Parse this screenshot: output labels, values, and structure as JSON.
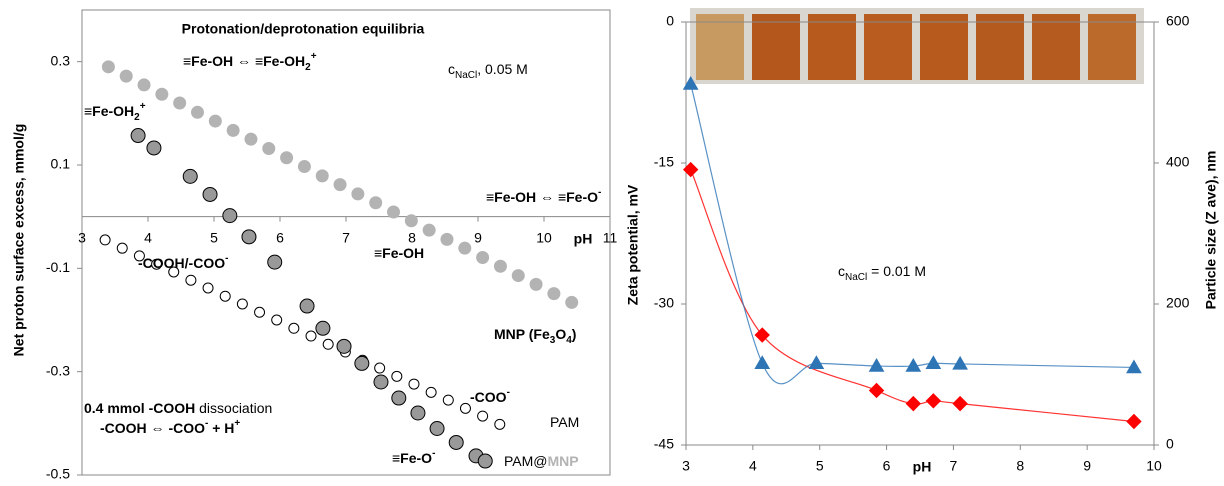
{
  "chart_data": [
    {
      "type": "scatter",
      "title": "Protonation/deprotonation equilibria",
      "x_label": "pH",
      "y_label": "Net proton surface excess, mmol/g",
      "xlim": [
        3,
        11
      ],
      "xticks": [
        3,
        4,
        5,
        6,
        7,
        8,
        9,
        10,
        11
      ],
      "ylim": [
        -0.5,
        0.4
      ],
      "yticks": [
        -0.5,
        -0.3,
        -0.1,
        0.1,
        0.3
      ],
      "series": [
        {
          "color": "#b3b3b3",
          "edgecolor": "#b3b3b3",
          "marker": "circle",
          "x": [
            3.4,
            3.67,
            3.94,
            4.21,
            4.48,
            4.75,
            5.02,
            5.29,
            5.56,
            5.83,
            6.1,
            6.37,
            6.64,
            6.91,
            7.18,
            7.45,
            7.72,
            7.99,
            8.26,
            8.53,
            8.8,
            9.07,
            9.34,
            9.61,
            9.88,
            10.15,
            10.42
          ],
          "values": [
            0.29,
            0.272,
            0.255,
            0.237,
            0.22,
            0.202,
            0.185,
            0.167,
            0.15,
            0.132,
            0.114,
            0.097,
            0.079,
            0.062,
            0.044,
            0.027,
            0.009,
            -0.008,
            -0.026,
            -0.044,
            -0.061,
            -0.079,
            -0.096,
            -0.114,
            -0.131,
            -0.149,
            -0.166
          ]
        },
        {
          "color": "#ffffff",
          "edgecolor": "#000000",
          "marker": "circle",
          "x": [
            3.35,
            3.61,
            3.87,
            4.13,
            4.39,
            4.65,
            4.91,
            5.17,
            5.43,
            5.69,
            5.95,
            6.21,
            6.47,
            6.73,
            6.99,
            7.25,
            7.51,
            7.77,
            8.03,
            8.29,
            8.55,
            8.81,
            9.07,
            9.33
          ],
          "values": [
            -0.045,
            -0.061,
            -0.076,
            -0.092,
            -0.107,
            -0.123,
            -0.138,
            -0.154,
            -0.169,
            -0.185,
            -0.2,
            -0.216,
            -0.231,
            -0.247,
            -0.262,
            -0.278,
            -0.293,
            -0.309,
            -0.324,
            -0.34,
            -0.355,
            -0.371,
            -0.386,
            -0.402
          ]
        },
        {
          "color": "#999999",
          "edgecolor": "#000000",
          "marker": "circle",
          "x": [
            3.85,
            4.09,
            4.64,
            4.94,
            5.24,
            5.53,
            5.92,
            6.41,
            6.65,
            6.97,
            7.24,
            7.53,
            7.8,
            8.09,
            8.38,
            8.67,
            8.97,
            9.11
          ],
          "values": [
            0.157,
            0.133,
            0.078,
            0.043,
            0.002,
            -0.039,
            -0.088,
            -0.173,
            -0.216,
            -0.251,
            -0.284,
            -0.32,
            -0.351,
            -0.38,
            -0.41,
            -0.437,
            -0.463,
            -0.473
          ]
        }
      ],
      "annotations": [
        {
          "color": "#000000",
          "parts": [
            {
              "text": "c"
            },
            {
              "text": "NaCl",
              "sub": true
            },
            {
              "text": ", 0.05 M"
            }
          ]
        },
        {
          "color": "#b3b3b3",
          "parts": [
            {
              "text": "≡Fe-OH ⇔ ≡Fe-OH",
              "bold": true
            },
            {
              "text": "2",
              "sub": true,
              "bold": true
            },
            {
              "text": "+",
              "sup": true,
              "bold": true
            }
          ]
        },
        {
          "color": "#000000",
          "parts": [
            {
              "text": "≡Fe-OH",
              "bold": true
            },
            {
              "text": "2",
              "sub": true,
              "bold": true
            },
            {
              "text": "+",
              "sup": true,
              "bold": true
            }
          ]
        },
        {
          "color": "#b3b3b3",
          "parts": [
            {
              "text": "≡Fe-OH ⇔ ≡Fe-O",
              "bold": true
            },
            {
              "text": "-",
              "sup": true,
              "bold": true
            }
          ]
        },
        {
          "color": "#b3b3b3",
          "parts": [
            {
              "text": "≡Fe-OH",
              "bold": true
            }
          ]
        },
        {
          "color": "#000000",
          "parts": [
            {
              "text": "-COOH/-COO",
              "bold": true
            },
            {
              "text": "-",
              "sup": true,
              "bold": true
            }
          ]
        },
        {
          "color": "#b3b3b3",
          "parts": [
            {
              "text": "MNP (Fe",
              "bold": true
            },
            {
              "text": "3",
              "sub": true,
              "bold": true
            },
            {
              "text": "O",
              "bold": true
            },
            {
              "text": "4",
              "sub": true,
              "bold": true
            },
            {
              "text": ")",
              "bold": true
            }
          ]
        },
        {
          "color": "#000000",
          "parts": [
            {
              "text": "-COO",
              "bold": true
            },
            {
              "text": "-",
              "sup": true,
              "bold": true
            }
          ]
        },
        {
          "color": "#000000",
          "parts": [
            {
              "text": "PAM"
            }
          ]
        },
        {
          "color": "#000000",
          "parts": [
            {
              "text": "0.4 mmol -COOH",
              "bold": true
            },
            {
              "text": " dissociation"
            }
          ]
        },
        {
          "color": "#000000",
          "parts": [
            {
              "text": "-COOH ⇔ -COO",
              "bold": true
            },
            {
              "text": "-",
              "sup": true,
              "bold": true
            },
            {
              "text": "  +  H",
              "bold": true
            },
            {
              "text": "+",
              "sup": true,
              "bold": true
            }
          ]
        },
        {
          "color": "#000000",
          "parts": [
            {
              "text": "≡Fe-O",
              "bold": true
            },
            {
              "text": "-",
              "sup": true,
              "bold": true
            }
          ]
        },
        {
          "color": "#000000",
          "parts": [
            {
              "text": "PAM@"
            },
            {
              "text": "MNP",
              "color": "#b3b3b3",
              "bold": true
            }
          ]
        }
      ]
    },
    {
      "type": "line",
      "x_label": "pH",
      "y_label": "Zeta potential, mV",
      "y2_label": "Particle size (Z ave), nm",
      "xlim": [
        3,
        10
      ],
      "xticks": [
        3,
        4,
        5,
        6,
        7,
        8,
        9,
        10
      ],
      "ylim": [
        -45,
        0
      ],
      "yticks": [
        -45,
        -30,
        -15,
        0
      ],
      "y2lim": [
        0,
        600
      ],
      "y2ticks": [
        0,
        200,
        400,
        600
      ],
      "series": [
        {
          "color": "#ff0000",
          "marker": "diamond",
          "x": [
            3.07,
            4.14,
            5.85,
            6.4,
            6.7,
            7.1,
            9.7
          ],
          "values": [
            -15.7,
            -33.3,
            -39.2,
            -40.6,
            -40.3,
            -40.6,
            -42.5
          ]
        },
        {
          "color": "#2e75b6",
          "marker": "triangle",
          "axis": "y2",
          "x": [
            3.07,
            4.14,
            4.95,
            5.85,
            6.4,
            6.7,
            7.1,
            9.7
          ],
          "values": [
            512,
            116,
            116,
            112,
            112,
            116,
            115,
            110
          ]
        }
      ],
      "annotations": [
        {
          "color": "#000000",
          "parts": [
            {
              "text": "c"
            },
            {
              "text": "NaCl",
              "sub": true
            },
            {
              "text": " = 0.01 M"
            }
          ]
        }
      ]
    }
  ]
}
